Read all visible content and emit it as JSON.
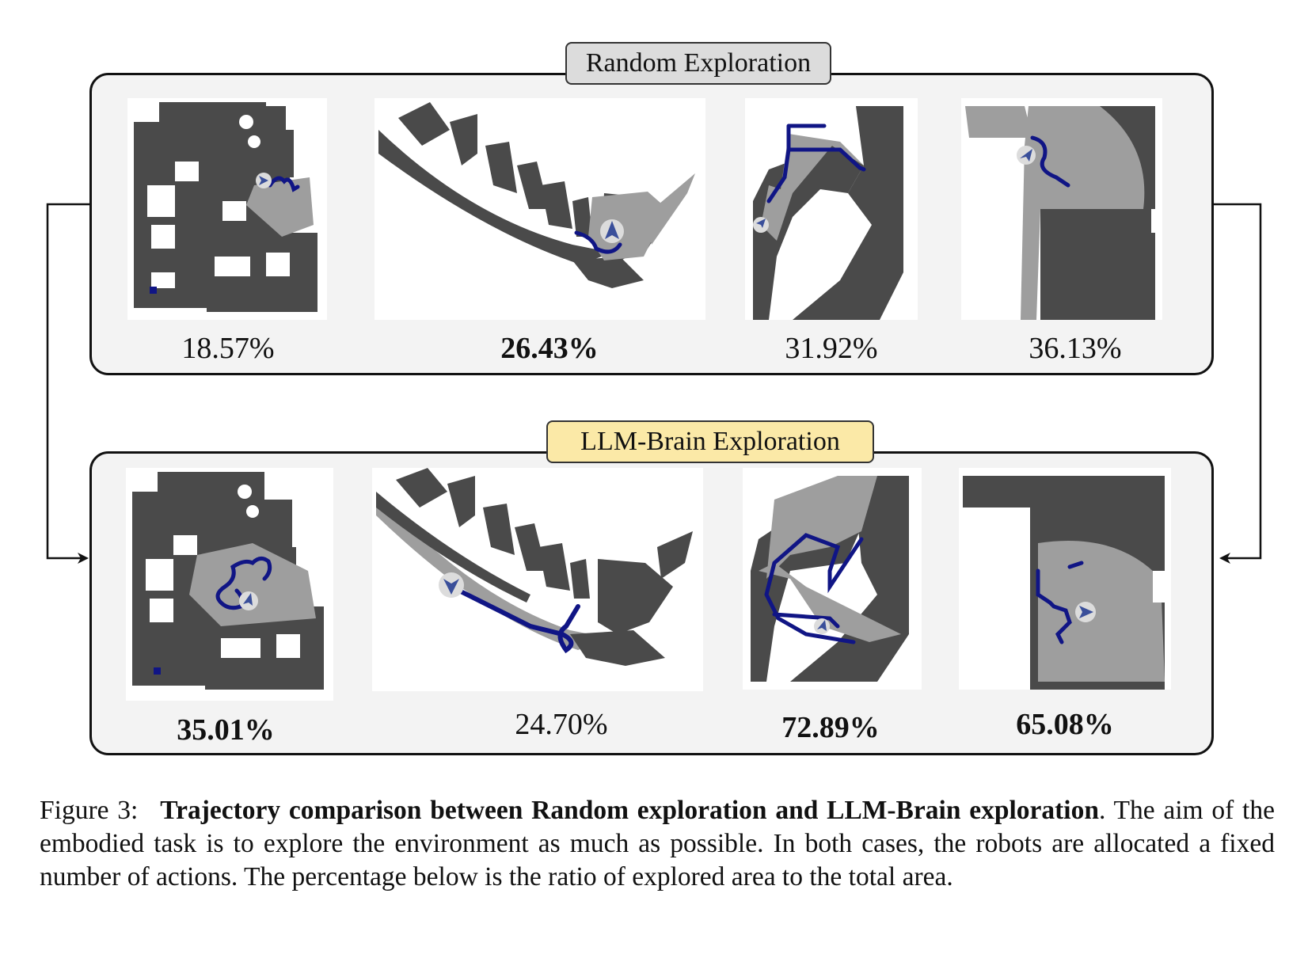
{
  "panels": {
    "random": {
      "title": "Random Exploration",
      "percentages": [
        "18.57%",
        "26.43%",
        "31.92%",
        "36.13%"
      ]
    },
    "llm": {
      "title": "LLM-Brain Exploration",
      "percentages": [
        "35.01%",
        "24.70%",
        "72.89%",
        "65.08%"
      ]
    }
  },
  "colors": {
    "obstacle": "#4a4a4a",
    "explored": "#9e9e9e",
    "free": "#ffffff",
    "trajectory": "#101585",
    "random_title_bg": "#dcdcdc",
    "llm_title_bg": "#fbe9a7",
    "panel_bg": "#f3f3f3"
  },
  "icons": [
    "robot-arrow-icon",
    "connector-arrow-icon"
  ],
  "caption": {
    "label": "Figure 3:",
    "title": "Trajectory comparison between Random exploration and LLM-Brain exploration",
    "title_end": ".",
    "body": "The aim of the embodied task is to explore the environment as much as possible. In both cases, the robots are allocated a fixed number of actions. The percentage below is the ratio of explored area to the total area."
  }
}
